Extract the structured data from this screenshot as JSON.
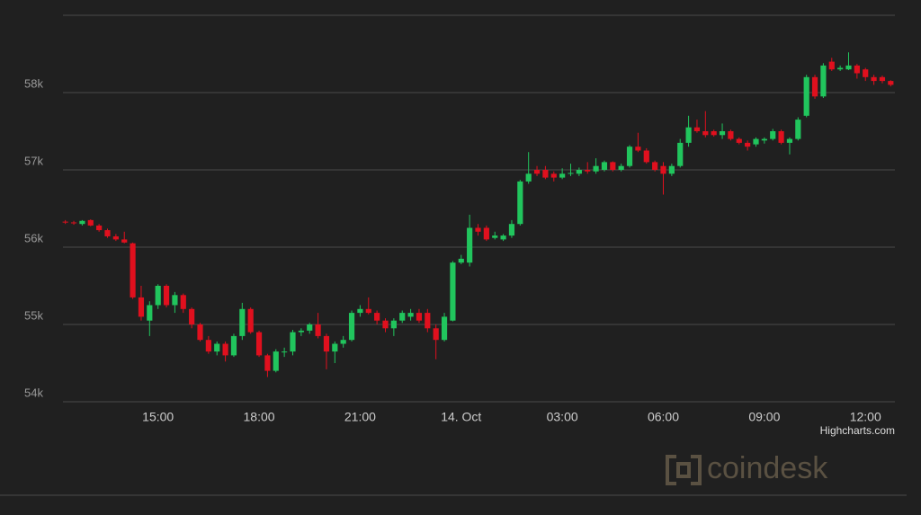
{
  "chart_data": {
    "type": "candlestick",
    "categories": [
      null,
      null,
      null,
      null,
      null,
      null,
      null,
      null,
      null,
      null,
      null,
      "15:00",
      null,
      null,
      null,
      null,
      null,
      null,
      null,
      null,
      null,
      null,
      null,
      "18:00",
      null,
      null,
      null,
      null,
      null,
      null,
      null,
      null,
      null,
      null,
      null,
      "21:00",
      null,
      null,
      null,
      null,
      null,
      null,
      null,
      null,
      null,
      null,
      null,
      "14. Oct",
      null,
      null,
      null,
      null,
      null,
      null,
      null,
      null,
      null,
      null,
      null,
      "03:00",
      null,
      null,
      null,
      null,
      null,
      null,
      null,
      null,
      null,
      null,
      null,
      "06:00",
      null,
      null,
      null,
      null,
      null,
      null,
      null,
      null,
      null,
      null,
      null,
      "09:00",
      null,
      null,
      null,
      null,
      null,
      null,
      null,
      null,
      null,
      null,
      null,
      "12:00",
      null,
      null,
      null
    ],
    "open": [
      56330,
      56320,
      56300,
      56350,
      56280,
      56220,
      56140,
      56100,
      56050,
      55350,
      55050,
      55250,
      55500,
      55250,
      55380,
      55200,
      55000,
      54800,
      54650,
      54750,
      54600,
      54850,
      55200,
      54900,
      54600,
      54400,
      54650,
      54650,
      54900,
      54920,
      55000,
      54850,
      54650,
      54750,
      54800,
      55150,
      55200,
      55150,
      55050,
      54950,
      55050,
      55100,
      55150,
      55150,
      54950,
      54800,
      55050,
      55800,
      55800,
      56250,
      56250,
      56120,
      56100,
      56150,
      56300,
      56850,
      57000,
      57000,
      56950,
      56900,
      56950,
      56950,
      57000,
      56980,
      57000,
      57100,
      57000,
      57050,
      57300,
      57250,
      57100,
      57050,
      56950,
      57050,
      57350,
      57550,
      57500,
      57500,
      57450,
      57500,
      57400,
      57350,
      57330,
      57380,
      57400,
      57500,
      57350,
      57400,
      57700,
      58200,
      57950,
      58400,
      58300,
      58300,
      58350,
      58300,
      58200,
      58200,
      58150
    ],
    "high": [
      56350,
      56340,
      56350,
      56360,
      56300,
      56240,
      56170,
      56200,
      56060,
      55500,
      55300,
      55520,
      55520,
      55420,
      55400,
      55220,
      55020,
      54850,
      54780,
      54780,
      54880,
      55280,
      55220,
      54920,
      54620,
      54680,
      54700,
      54930,
      54950,
      55020,
      55150,
      54880,
      54780,
      54850,
      55180,
      55250,
      55350,
      55180,
      55080,
      55080,
      55180,
      55200,
      55200,
      55200,
      55000,
      55150,
      55820,
      55900,
      56420,
      56300,
      56280,
      56200,
      56170,
      56350,
      56870,
      57230,
      57050,
      57050,
      56980,
      57020,
      57080,
      57030,
      57100,
      57150,
      57120,
      57110,
      57080,
      57320,
      57480,
      57280,
      57120,
      57100,
      57080,
      57400,
      57700,
      57650,
      57760,
      57520,
      57600,
      57520,
      57420,
      57380,
      57420,
      57420,
      57530,
      57520,
      57420,
      57680,
      58230,
      58230,
      58380,
      58450,
      58350,
      58520,
      58370,
      58320,
      58230,
      58220,
      58160
    ],
    "low": [
      56300,
      56290,
      56280,
      56270,
      56200,
      56120,
      56080,
      56050,
      55330,
      55050,
      54850,
      55200,
      55220,
      55150,
      55150,
      54950,
      54780,
      54620,
      54600,
      54520,
      54580,
      54800,
      54880,
      54580,
      54320,
      54380,
      54580,
      54600,
      54850,
      54880,
      54820,
      54420,
      54500,
      54700,
      54780,
      55100,
      55130,
      55000,
      54900,
      54850,
      55020,
      55050,
      55020,
      54900,
      54550,
      54780,
      55040,
      55780,
      55750,
      56150,
      56080,
      56100,
      56080,
      56120,
      56280,
      56820,
      56920,
      56880,
      56850,
      56880,
      56920,
      56920,
      56950,
      56950,
      56980,
      56980,
      56980,
      57030,
      57230,
      57080,
      56980,
      56680,
      56920,
      57030,
      57300,
      57480,
      57420,
      57430,
      57400,
      57380,
      57330,
      57250,
      57300,
      57340,
      57380,
      57330,
      57200,
      57380,
      57680,
      57920,
      57930,
      58280,
      58280,
      58290,
      58180,
      58150,
      58100,
      58120,
      58080
    ],
    "close": [
      56320,
      56310,
      56340,
      56280,
      56220,
      56140,
      56100,
      56060,
      55350,
      55100,
      55250,
      55500,
      55250,
      55380,
      55200,
      55000,
      54800,
      54650,
      54750,
      54600,
      54850,
      55200,
      54900,
      54600,
      54400,
      54650,
      54650,
      54900,
      54920,
      55000,
      54850,
      54650,
      54750,
      54800,
      55150,
      55200,
      55150,
      55050,
      54950,
      55050,
      55150,
      55150,
      55050,
      54950,
      54800,
      55100,
      55800,
      55850,
      56250,
      56200,
      56100,
      56150,
      56150,
      56300,
      56850,
      56950,
      56950,
      56900,
      56900,
      56950,
      56960,
      57000,
      56980,
      57050,
      57100,
      57000,
      57050,
      57300,
      57250,
      57100,
      57000,
      56950,
      57050,
      57350,
      57550,
      57500,
      57450,
      57450,
      57500,
      57400,
      57350,
      57300,
      57400,
      57400,
      57500,
      57350,
      57400,
      57650,
      58200,
      57950,
      58350,
      58300,
      58320,
      58350,
      58250,
      58200,
      58150,
      58150,
      58100
    ],
    "up_color": "#21c55d",
    "down_color": "#e0101e",
    "ylim": [
      54000,
      59000
    ],
    "yticks": [
      {
        "value": 54000,
        "label": "54k"
      },
      {
        "value": 55000,
        "label": "55k"
      },
      {
        "value": 56000,
        "label": "56k"
      },
      {
        "value": 57000,
        "label": "57k"
      },
      {
        "value": 58000,
        "label": "58k"
      }
    ],
    "grid": true,
    "credits": "Highcharts.com",
    "watermark": "coindesk"
  }
}
